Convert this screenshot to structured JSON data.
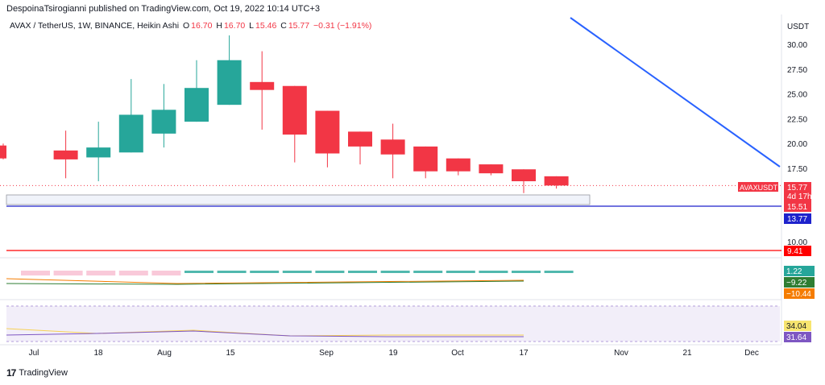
{
  "header": {
    "publisher": "DespoinaTsirogianni published on TradingView.com, Oct 19, 2022 10:14 UTC+3"
  },
  "legend": {
    "symbol": "AVAX / TetherUS, 1W, BINANCE, Heikin Ashi",
    "o_label": "O",
    "o_val": "16.70",
    "h_label": "H",
    "h_val": "16.70",
    "l_label": "L",
    "l_val": "15.46",
    "c_label": "C",
    "c_val": "15.77",
    "change": "−0.31 (−1.91%)"
  },
  "footer": {
    "brand": "TradingView",
    "logo": "17"
  },
  "colors": {
    "up": "#26a69a",
    "down": "#f23645",
    "trend": "#2962ff",
    "support": "#1e22cc",
    "resistance": "#ff0000"
  },
  "chart_data": {
    "type": "candlestick",
    "y_unit": "USDT",
    "y_ticks": [
      17.5,
      20.0,
      22.5,
      25.0,
      27.5,
      30.0
    ],
    "y_tick_labels": [
      "17.50",
      "20.00",
      "22.50",
      "25.00",
      "27.50",
      "30.00"
    ],
    "y_tick_10": {
      "value": 10.0,
      "label": "10.00"
    },
    "x_labels": [
      "Jul",
      "18",
      "Aug",
      "15",
      "Sep",
      "19",
      "Oct",
      "17",
      "Nov",
      "21",
      "Dec"
    ],
    "candles": [
      {
        "o": 19.8,
        "h": 20.0,
        "l": 18.4,
        "c": 18.5,
        "dir": "down"
      },
      {
        "o": 19.3,
        "h": 21.3,
        "l": 16.5,
        "c": 18.4,
        "dir": "down"
      },
      {
        "o": 18.6,
        "h": 22.2,
        "l": 16.2,
        "c": 19.6,
        "dir": "up"
      },
      {
        "o": 19.1,
        "h": 26.5,
        "l": 19.1,
        "c": 22.9,
        "dir": "up"
      },
      {
        "o": 21.0,
        "h": 26.0,
        "l": 19.6,
        "c": 23.4,
        "dir": "up"
      },
      {
        "o": 22.2,
        "h": 28.4,
        "l": 22.2,
        "c": 25.6,
        "dir": "up"
      },
      {
        "o": 23.9,
        "h": 30.9,
        "l": 23.9,
        "c": 28.4,
        "dir": "up"
      },
      {
        "o": 26.2,
        "h": 29.3,
        "l": 21.4,
        "c": 25.4,
        "dir": "down"
      },
      {
        "o": 25.8,
        "h": 25.8,
        "l": 18.1,
        "c": 20.9,
        "dir": "down"
      },
      {
        "o": 23.3,
        "h": 23.3,
        "l": 17.6,
        "c": 19.0,
        "dir": "down"
      },
      {
        "o": 21.2,
        "h": 21.2,
        "l": 17.9,
        "c": 19.7,
        "dir": "down"
      },
      {
        "o": 20.4,
        "h": 22.0,
        "l": 16.5,
        "c": 18.9,
        "dir": "down"
      },
      {
        "o": 19.7,
        "h": 19.7,
        "l": 16.5,
        "c": 17.2,
        "dir": "down"
      },
      {
        "o": 18.5,
        "h": 18.5,
        "l": 16.8,
        "c": 17.2,
        "dir": "down"
      },
      {
        "o": 17.9,
        "h": 17.9,
        "l": 16.8,
        "c": 17.0,
        "dir": "down"
      },
      {
        "o": 17.4,
        "h": 17.4,
        "l": 15.0,
        "c": 16.2,
        "dir": "down"
      },
      {
        "o": 16.7,
        "h": 16.7,
        "l": 15.46,
        "c": 15.77,
        "dir": "down"
      }
    ],
    "price_tags": [
      {
        "label": "AVAXUSDT",
        "value": "15.77",
        "sub": "4d 17h",
        "color": "#f23645"
      },
      {
        "label": "",
        "value": "15.51",
        "color": "#f23645"
      },
      {
        "label": "",
        "value": "13.77",
        "color": "#1e22cc"
      },
      {
        "label": "",
        "value": "9.41",
        "color": "#ff0000"
      }
    ],
    "indicator_tags": [
      {
        "value": "1.22",
        "color": "#26a69a"
      },
      {
        "value": "−9.22",
        "color": "#2e7d32"
      },
      {
        "value": "−10.44",
        "color": "#f57c00"
      }
    ],
    "rsi_tags": [
      {
        "value": "34.04",
        "color": "#f7e56f"
      },
      {
        "value": "31.64",
        "color": "#7e57c2"
      }
    ]
  }
}
